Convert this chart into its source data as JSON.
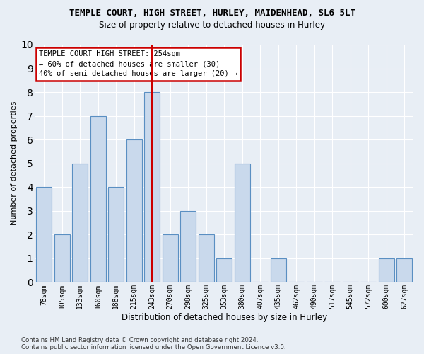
{
  "title1": "TEMPLE COURT, HIGH STREET, HURLEY, MAIDENHEAD, SL6 5LT",
  "title2": "Size of property relative to detached houses in Hurley",
  "xlabel": "Distribution of detached houses by size in Hurley",
  "ylabel": "Number of detached properties",
  "categories": [
    "78sqm",
    "105sqm",
    "133sqm",
    "160sqm",
    "188sqm",
    "215sqm",
    "243sqm",
    "270sqm",
    "298sqm",
    "325sqm",
    "353sqm",
    "380sqm",
    "407sqm",
    "435sqm",
    "462sqm",
    "490sqm",
    "517sqm",
    "545sqm",
    "572sqm",
    "600sqm",
    "627sqm"
  ],
  "values": [
    4,
    2,
    5,
    7,
    4,
    6,
    8,
    2,
    3,
    2,
    1,
    5,
    0,
    1,
    0,
    0,
    0,
    0,
    0,
    1,
    1
  ],
  "bar_color": "#c9d9ec",
  "bar_edge_color": "#5a8fc2",
  "red_line_x": 6.0,
  "annotation_text": "TEMPLE COURT HIGH STREET: 254sqm\n← 60% of detached houses are smaller (30)\n40% of semi-detached houses are larger (20) →",
  "annotation_box_color": "#ffffff",
  "annotation_box_edge": "#cc0000",
  "footer": "Contains HM Land Registry data © Crown copyright and database right 2024.\nContains public sector information licensed under the Open Government Licence v3.0.",
  "ylim": [
    0,
    10
  ],
  "background_color": "#e8eef5",
  "plot_bg_color": "#e8eef5",
  "grid_color": "#ffffff",
  "title1_fontsize": 9,
  "title2_fontsize": 8.5,
  "tick_fontsize": 7,
  "ylabel_fontsize": 8,
  "xlabel_fontsize": 8.5
}
